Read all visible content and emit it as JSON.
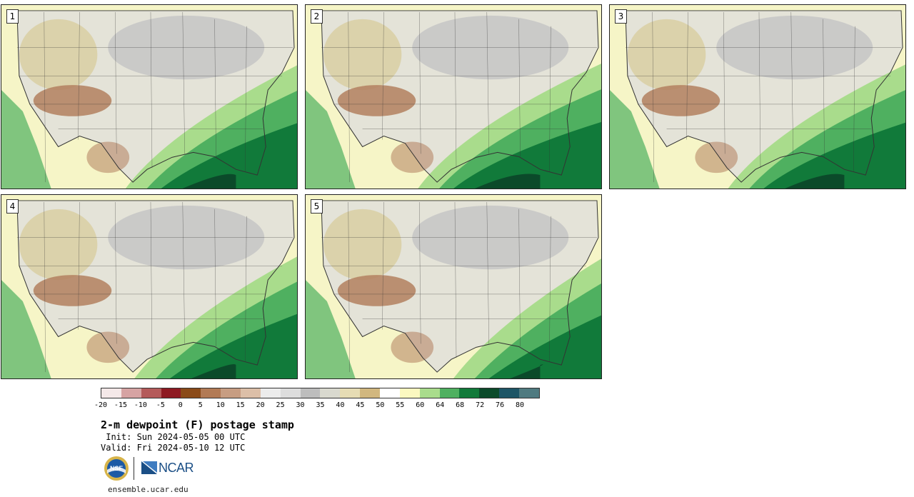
{
  "title": "2-m dewpoint (F) postage stamp",
  "init": " Init: Sun 2024-05-05 00 UTC",
  "valid": "Valid: Fri 2024-05-10 12 UTC",
  "website": "ensemble.ucar.edu",
  "logos": {
    "nsf": "NSF",
    "ncar": "NCAR"
  },
  "panels": [
    {
      "label": "1",
      "moist_reach": 0.58
    },
    {
      "label": "2",
      "moist_reach": 0.62
    },
    {
      "label": "3",
      "moist_reach": 0.6
    },
    {
      "label": "4",
      "moist_reach": 0.55
    },
    {
      "label": "5",
      "moist_reach": 0.5
    }
  ],
  "colorbar": {
    "tick_labels": [
      "-20",
      "-15",
      "-10",
      "-5",
      "0",
      "5",
      "10",
      "15",
      "20",
      "25",
      "30",
      "35",
      "40",
      "45",
      "50",
      "55",
      "60",
      "64",
      "68",
      "72",
      "76",
      "80"
    ],
    "colors": [
      "#f4e8e8",
      "#d6a3a3",
      "#b45a5a",
      "#8e1a22",
      "#8a4a18",
      "#b27a55",
      "#c79d82",
      "#dcbfa8",
      "#ececec",
      "#dddddd",
      "#bdbdbd",
      "#d9d9cf",
      "#e6dcb4",
      "#d1b77f",
      "#ffffff",
      "#fbf8c0",
      "#a9dc8c",
      "#4fb060",
      "#117a3a",
      "#0b4a2a",
      "#1d5566",
      "#4f7a80"
    ]
  },
  "map_colors": {
    "ocean_dry": "#f6f5c7",
    "land_tan": "#d9cfa6",
    "land_gray": "#c6c6c6",
    "land_light": "#e4e3d8",
    "brown": "#b3805f",
    "green_light": "#a9dc8c",
    "green_mid": "#4fb060",
    "green_dark": "#117a3a",
    "green_deep": "#0b4a2a",
    "border": "#333333"
  }
}
